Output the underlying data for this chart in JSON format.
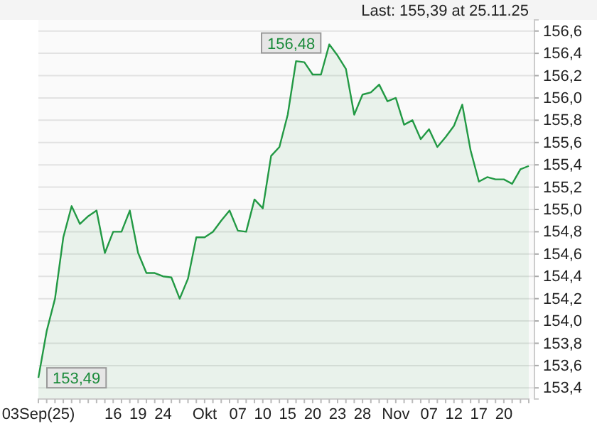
{
  "chart_data": {
    "type": "area",
    "categories": [
      "03Sep(25)",
      null,
      null,
      null,
      null,
      null,
      null,
      null,
      null,
      "16",
      null,
      null,
      "19",
      null,
      null,
      "24",
      null,
      null,
      null,
      null,
      "Okt",
      null,
      null,
      null,
      "07",
      null,
      null,
      "10",
      null,
      null,
      "15",
      null,
      null,
      "20",
      null,
      null,
      "23",
      null,
      null,
      "28",
      null,
      null,
      null,
      "Nov",
      null,
      null,
      null,
      "07",
      null,
      null,
      "12",
      null,
      null,
      "17",
      null,
      null,
      "20",
      null,
      null,
      null
    ],
    "series": [
      {
        "color": "#229944",
        "values": [
          153.49,
          153.91,
          154.2,
          154.75,
          155.03,
          154.87,
          154.94,
          154.99,
          154.61,
          154.8,
          154.8,
          154.99,
          154.61,
          154.43,
          154.43,
          154.4,
          154.39,
          154.2,
          154.38,
          154.75,
          154.75,
          154.8,
          154.9,
          154.99,
          154.81,
          154.8,
          155.09,
          155.01,
          155.48,
          155.56,
          155.85,
          156.33,
          156.32,
          156.21,
          156.21,
          156.48,
          156.38,
          156.26,
          155.85,
          156.03,
          156.05,
          156.12,
          155.97,
          156.0,
          155.76,
          155.8,
          155.63,
          155.72,
          155.56,
          155.65,
          155.75,
          155.94,
          155.53,
          155.25,
          155.29,
          155.27,
          155.27,
          155.23,
          155.36,
          155.39
        ]
      }
    ],
    "ylim": [
      153.3,
      156.7
    ],
    "yticks": [
      {
        "value": 153.4,
        "label": "153,4"
      },
      {
        "value": 153.6,
        "label": "153,6"
      },
      {
        "value": 153.8,
        "label": "153,8"
      },
      {
        "value": 154.0,
        "label": "154,0"
      },
      {
        "value": 154.2,
        "label": "154,2"
      },
      {
        "value": 154.4,
        "label": "154,4"
      },
      {
        "value": 154.6,
        "label": "154,6"
      },
      {
        "value": 154.8,
        "label": "154,8"
      },
      {
        "value": 155.0,
        "label": "155,0"
      },
      {
        "value": 155.2,
        "label": "155,2"
      },
      {
        "value": 155.4,
        "label": "155,4"
      },
      {
        "value": 155.6,
        "label": "155,6"
      },
      {
        "value": 155.8,
        "label": "155,8"
      },
      {
        "value": 156.0,
        "label": "156,0"
      },
      {
        "value": 156.2,
        "label": "156,2"
      },
      {
        "value": 156.4,
        "label": "156,4"
      },
      {
        "value": 156.6,
        "label": "156,6"
      }
    ],
    "grid": "y",
    "annotations": [
      "Last: 155,39 at 25.11.25",
      {
        "text": "156,48",
        "y": 156.48
      },
      {
        "text": "153,49",
        "y": 153.49
      }
    ]
  }
}
